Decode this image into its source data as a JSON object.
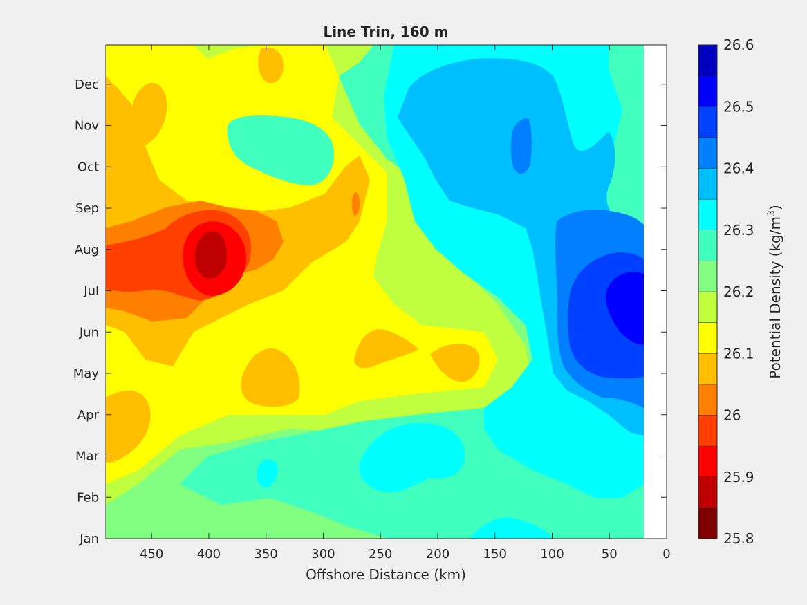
{
  "chart_data": {
    "type": "heatmap",
    "subtype": "filled-contour",
    "title": "Line Trin, 160 m",
    "xlabel": "Offshore Distance (km)",
    "ylabel": "",
    "x_axis_reversed": true,
    "xlim": [
      490,
      0
    ],
    "x_ticks": [
      450,
      400,
      350,
      300,
      250,
      200,
      150,
      100,
      50,
      0
    ],
    "y_ticks": [
      "Jan",
      "Feb",
      "Mar",
      "Apr",
      "May",
      "Jun",
      "Jul",
      "Aug",
      "Sep",
      "Oct",
      "Nov",
      "Dec"
    ],
    "colorbar": {
      "label_main": "Potential Density (kg/m",
      "label_sup": "3",
      "label_close": ")",
      "range": [
        25.8,
        26.6
      ],
      "ticks": [
        "26.6",
        "26.5",
        "26.4",
        "26.3",
        "26.2",
        "26.1",
        "26",
        "25.9",
        "25.8"
      ],
      "levels": [
        25.8,
        25.85,
        25.9,
        25.95,
        26.0,
        26.05,
        26.1,
        26.15,
        26.2,
        26.25,
        26.3,
        26.35,
        26.4,
        26.45,
        26.5,
        26.55,
        26.6
      ],
      "colors": [
        "#800000",
        "#bf0000",
        "#ff0000",
        "#ff4000",
        "#ff8000",
        "#ffbf00",
        "#ffff00",
        "#bfff40",
        "#80ff80",
        "#40ffbf",
        "#00ffff",
        "#00bfff",
        "#0080ff",
        "#0040ff",
        "#0000ff",
        "#0000bf"
      ]
    },
    "no_data_region_km": [
      20,
      0
    ],
    "density_field": [
      {
        "x": 470,
        "y": "Aug",
        "value": 26.0
      },
      {
        "x": 400,
        "y": "Aug",
        "value": 25.87
      },
      {
        "x": 440,
        "y": "Dec",
        "value": 26.07
      },
      {
        "x": 380,
        "y": "Dec",
        "value": 26.07
      },
      {
        "x": 270,
        "y": "Sep",
        "value": 26.03
      },
      {
        "x": 380,
        "y": "Apr",
        "value": 26.08
      },
      {
        "x": 470,
        "y": "Apr",
        "value": 26.08
      },
      {
        "x": 240,
        "y": "Jun",
        "value": 26.08
      },
      {
        "x": 180,
        "y": "May",
        "value": 26.08
      },
      {
        "x": 330,
        "y": "Nov",
        "value": 26.27
      },
      {
        "x": 120,
        "y": "Nov",
        "value": 26.45
      },
      {
        "x": 100,
        "y": "Sep",
        "value": 26.38
      },
      {
        "x": 40,
        "y": "Jul",
        "value": 26.52
      },
      {
        "x": 70,
        "y": "Jun",
        "value": 26.47
      },
      {
        "x": 200,
        "y": "Mar",
        "value": 26.32
      },
      {
        "x": 340,
        "y": "Mar",
        "value": 26.32
      },
      {
        "x": 70,
        "y": "Feb",
        "value": 26.17
      },
      {
        "x": 300,
        "y": "Jan",
        "value": 26.27
      }
    ]
  }
}
